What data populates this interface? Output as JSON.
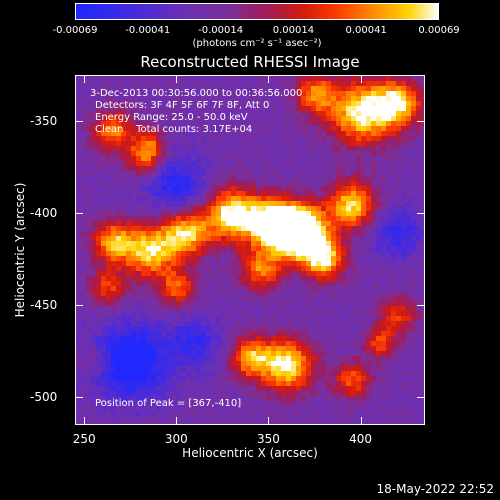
{
  "colorbar": {
    "ticks": [
      "-0.00069",
      "-0.00041",
      "-0.00014",
      "0.00014",
      "0.00041",
      "0.00069"
    ],
    "units": "(photons cm⁻² s⁻¹ asec⁻²)"
  },
  "title": "Reconstructed RHESSI Image",
  "annotations": {
    "time_range": "3-Dec-2013 00:30:56.000 to 00:36:56.000",
    "detectors": "Detectors: 3F 4F 5F 6F 7F 8F, Att 0",
    "energy": "Energy Range: 25.0 - 50.0 keV",
    "clean": "Clean    Total counts: 3.17E+04",
    "peak": "Position of Peak = [367,-410]"
  },
  "footer": {
    "timestamp": "18-May-2022 22:52"
  },
  "chart_data": {
    "type": "heatmap",
    "title": "Reconstructed RHESSI Image",
    "xlabel": "Heliocentric X (arcsec)",
    "ylabel": "Heliocentric Y (arcsec)",
    "xlim": [
      245,
      435
    ],
    "ylim": [
      -515,
      -325
    ],
    "xticks": [
      "250",
      "300",
      "350",
      "400"
    ],
    "yticks": [
      "-350",
      "-400",
      "-450",
      "-500"
    ],
    "colorbar_range": [
      -0.00069,
      0.00069
    ],
    "peak": {
      "x": 367,
      "y": -410
    },
    "colors": {
      "low": "#1e28ff",
      "mid": "#7a2f9a",
      "high": "#ffffff"
    }
  }
}
